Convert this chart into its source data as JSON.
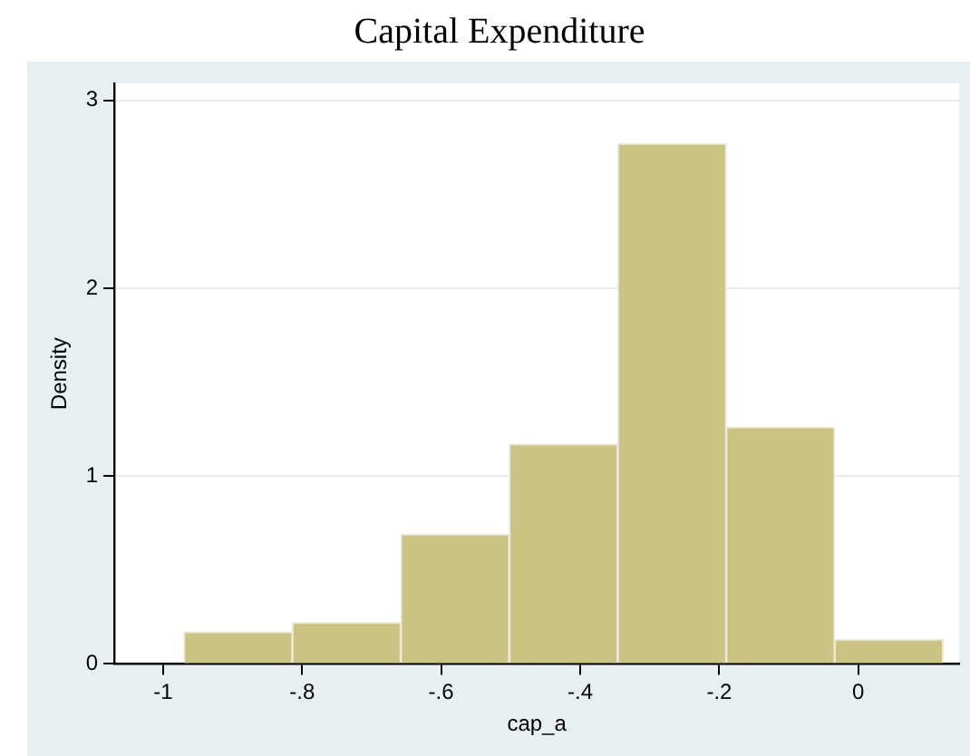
{
  "chart_data": {
    "type": "histogram",
    "title": "Capital Expenditure",
    "xlabel": "cap_a",
    "ylabel": "Density",
    "bins": [
      -0.97,
      -0.814,
      -0.658,
      -0.502,
      -0.346,
      -0.19,
      -0.034,
      0.122
    ],
    "values": [
      0.17,
      0.22,
      0.69,
      1.17,
      2.77,
      1.26,
      0.13
    ],
    "color": "#cbc381",
    "xlim": [
      -1.07,
      0.145
    ],
    "xticks": [
      {
        "value": -1,
        "label": "-1"
      },
      {
        "value": -0.8,
        "label": "-.8"
      },
      {
        "value": -0.6,
        "label": "-.6"
      },
      {
        "value": -0.4,
        "label": "-.4"
      },
      {
        "value": -0.2,
        "label": "-.2"
      },
      0
    ],
    "ylim": [
      0,
      3.09
    ],
    "yticks": [
      0,
      1,
      2,
      3
    ],
    "grid": "y",
    "legend": false
  }
}
